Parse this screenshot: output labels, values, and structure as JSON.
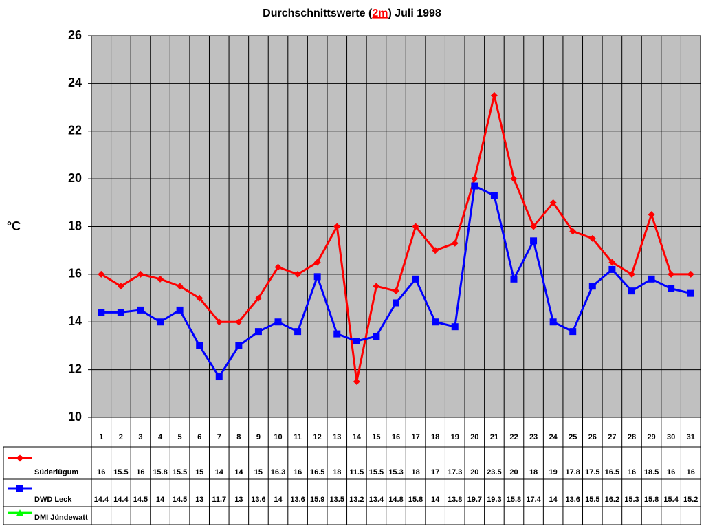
{
  "chart_data": {
    "type": "line",
    "title": [
      "Durchschnittswerte (",
      "2m",
      ") Juli 1998"
    ],
    "ylabel": "°C",
    "categories": [
      "1",
      "2",
      "3",
      "4",
      "5",
      "6",
      "7",
      "8",
      "9",
      "10",
      "11",
      "12",
      "13",
      "14",
      "15",
      "16",
      "17",
      "18",
      "19",
      "20",
      "21",
      "22",
      "23",
      "24",
      "25",
      "26",
      "27",
      "28",
      "29",
      "30",
      "31"
    ],
    "series": [
      {
        "name": "Süderlügum",
        "color": "#ff0000",
        "marker": "diamond",
        "values": [
          16,
          15.5,
          16,
          15.8,
          15.5,
          15,
          14,
          14,
          15,
          16.3,
          16,
          16.5,
          18,
          11.5,
          15.5,
          15.3,
          18,
          17,
          17.3,
          20,
          23.5,
          20,
          18,
          19,
          17.8,
          17.5,
          16.5,
          16,
          18.5,
          16,
          16
        ]
      },
      {
        "name": "DWD Leck",
        "color": "#0000ff",
        "marker": "square",
        "values": [
          14.4,
          14.4,
          14.5,
          14,
          14.5,
          13,
          11.7,
          13,
          13.6,
          14,
          13.6,
          15.9,
          13.5,
          13.2,
          13.4,
          14.8,
          15.8,
          14,
          13.8,
          19.7,
          19.3,
          15.8,
          17.4,
          14,
          13.6,
          15.5,
          16.2,
          15.3,
          15.8,
          15.4,
          15.2
        ]
      },
      {
        "name": "DMI Jündewatt",
        "color": "#00ff00",
        "marker": "triangle",
        "values": [
          null,
          null,
          null,
          null,
          null,
          null,
          null,
          null,
          null,
          null,
          null,
          null,
          null,
          null,
          null,
          null,
          null,
          null,
          null,
          null,
          null,
          null,
          null,
          null,
          null,
          null,
          null,
          null,
          null,
          null,
          null
        ]
      }
    ],
    "ylim": [
      10,
      26
    ],
    "yticks": [
      10,
      12,
      14,
      16,
      18,
      20,
      22,
      24,
      26
    ],
    "grid": true
  }
}
